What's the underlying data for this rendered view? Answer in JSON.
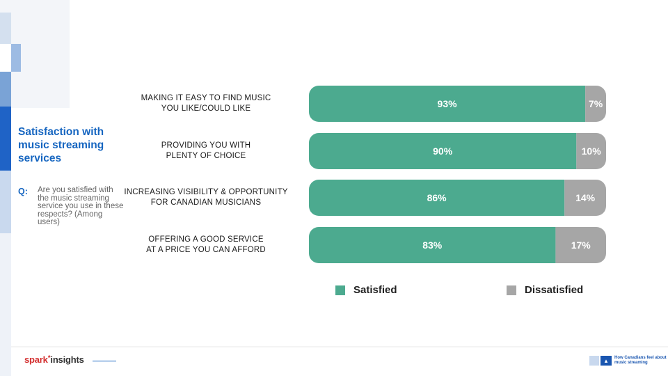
{
  "slide": {
    "title": "Satisfaction with music streaming services",
    "question_label": "Q:",
    "question_text": "Are you satisfied with the music streaming service you use in these respects? (Among users)"
  },
  "chart_data": {
    "type": "bar",
    "orientation": "horizontal",
    "stacked": true,
    "categories": [
      [
        "MAKING IT EASY TO FIND MUSIC",
        "YOU LIKE/COULD LIKE"
      ],
      [
        "PROVIDING YOU WITH",
        "PLENTY OF CHOICE"
      ],
      [
        "INCREASING VISIBILITY & OPPORTUNITY",
        "FOR CANADIAN MUSICIANS"
      ],
      [
        "OFFERING A GOOD SERVICE",
        "AT A PRICE YOU CAN AFFORD"
      ]
    ],
    "series": [
      {
        "name": "Satisfied",
        "values": [
          93,
          90,
          86,
          83
        ],
        "labels": [
          "93%",
          "90%",
          "86%",
          "83%"
        ],
        "color": "#4caa8f"
      },
      {
        "name": "Dissatisfied",
        "values": [
          7,
          10,
          14,
          17
        ],
        "labels": [
          "7%",
          "10%",
          "14%",
          "17%"
        ],
        "color": "#a6a6a6"
      }
    ],
    "xlim": [
      0,
      100
    ],
    "grid": false,
    "legend": "bottom"
  },
  "footer": {
    "brand_part1": "spark",
    "brand_star": "*",
    "brand_part2": "insights",
    "report_title": "How Canadians feel about music streaming",
    "colors": {
      "accent": "#1565c0",
      "brand_red": "#d32f2f"
    }
  }
}
